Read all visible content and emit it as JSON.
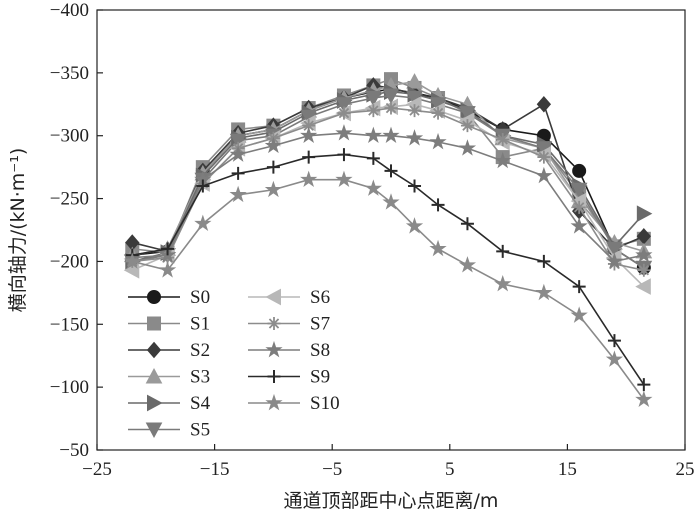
{
  "chart_data": {
    "type": "line",
    "xlabel": "通道顶部距中心点距离/m",
    "ylabel": "横向轴力/(kN·m⁻¹)",
    "xlim": [
      -25,
      25
    ],
    "ylim": [
      -400,
      -50
    ],
    "y_axis_inverted": true,
    "xticks": [
      -25,
      -15,
      -5,
      5,
      15,
      25
    ],
    "yticks": [
      -400,
      -350,
      -300,
      -250,
      -200,
      -150,
      -100,
      -50
    ],
    "xtick_labels": [
      "−25",
      "−15",
      "−5",
      "5",
      "15",
      "25"
    ],
    "ytick_labels": [
      "−400",
      "−350",
      "−300",
      "−250",
      "−200",
      "−150",
      "−100",
      "−50"
    ],
    "legend_position": "lower-left",
    "grid": false,
    "x": [
      -22,
      -19,
      -16,
      -13,
      -10,
      -7,
      -4,
      -1.5,
      0,
      2,
      4,
      6.5,
      9.5,
      13,
      16,
      19,
      21.5
    ],
    "series": [
      {
        "name": "S0",
        "color": "#1a1a1a",
        "marker": "circle",
        "values": [
          -205,
          -208,
          -270,
          -300,
          -305,
          -320,
          -330,
          -335,
          -337,
          -334,
          -330,
          -320,
          -305,
          -300,
          -272,
          -210,
          -195
        ]
      },
      {
        "name": "S1",
        "color": "#8a8a8a",
        "marker": "square",
        "values": [
          -210,
          -207,
          -275,
          -305,
          -308,
          -322,
          -332,
          -340,
          -345,
          -338,
          -330,
          -318,
          -283,
          -290,
          -253,
          -212,
          -218
        ]
      },
      {
        "name": "S2",
        "color": "#3a3a3a",
        "marker": "diamond",
        "values": [
          -215,
          -208,
          -272,
          -302,
          -308,
          -322,
          -330,
          -340,
          -338,
          -333,
          -330,
          -322,
          -305,
          -325,
          -240,
          -210,
          -220
        ]
      },
      {
        "name": "S3",
        "color": "#9a9a9a",
        "marker": "triangle-up",
        "values": [
          -205,
          -210,
          -270,
          -300,
          -305,
          -320,
          -330,
          -336,
          -340,
          -343,
          -332,
          -325,
          -298,
          -290,
          -248,
          -215,
          -208
        ]
      },
      {
        "name": "S4",
        "color": "#6a6a6a",
        "marker": "triangle-right",
        "values": [
          -200,
          -207,
          -268,
          -298,
          -303,
          -318,
          -328,
          -333,
          -335,
          -333,
          -328,
          -320,
          -300,
          -293,
          -260,
          -212,
          -238
        ]
      },
      {
        "name": "S5",
        "color": "#7a7a7a",
        "marker": "triangle-down",
        "values": [
          -200,
          -205,
          -265,
          -296,
          -300,
          -315,
          -325,
          -330,
          -332,
          -330,
          -325,
          -318,
          -300,
          -290,
          -257,
          -210,
          -195
        ]
      },
      {
        "name": "S6",
        "color": "#b8b8b8",
        "marker": "triangle-left",
        "values": [
          -193,
          -205,
          -262,
          -290,
          -298,
          -310,
          -318,
          -322,
          -323,
          -325,
          -320,
          -312,
          -295,
          -285,
          -248,
          -203,
          -180
        ]
      },
      {
        "name": "S7",
        "color": "#8c8c8c",
        "marker": "asterisk",
        "values": [
          -200,
          -203,
          -262,
          -290,
          -298,
          -308,
          -318,
          -320,
          -322,
          -320,
          -318,
          -308,
          -297,
          -283,
          -243,
          -198,
          -193
        ]
      },
      {
        "name": "S8",
        "color": "#7d7d7d",
        "marker": "star",
        "values": [
          -203,
          -205,
          -265,
          -285,
          -292,
          -300,
          -302,
          -300,
          -300,
          -298,
          -295,
          -290,
          -280,
          -268,
          -228,
          -200,
          -205
        ]
      },
      {
        "name": "S9",
        "color": "#2a2a2a",
        "marker": "plus",
        "values": [
          -205,
          -210,
          -260,
          -270,
          -275,
          -283,
          -285,
          -282,
          -272,
          -260,
          -245,
          -230,
          -208,
          -200,
          -180,
          -137,
          -102
        ]
      },
      {
        "name": "S10",
        "color": "#8a8a8a",
        "marker": "star",
        "values": [
          -200,
          -193,
          -230,
          -253,
          -257,
          -265,
          -265,
          -258,
          -247,
          -228,
          -210,
          -197,
          -182,
          -175,
          -157,
          -122,
          -90
        ]
      }
    ]
  }
}
